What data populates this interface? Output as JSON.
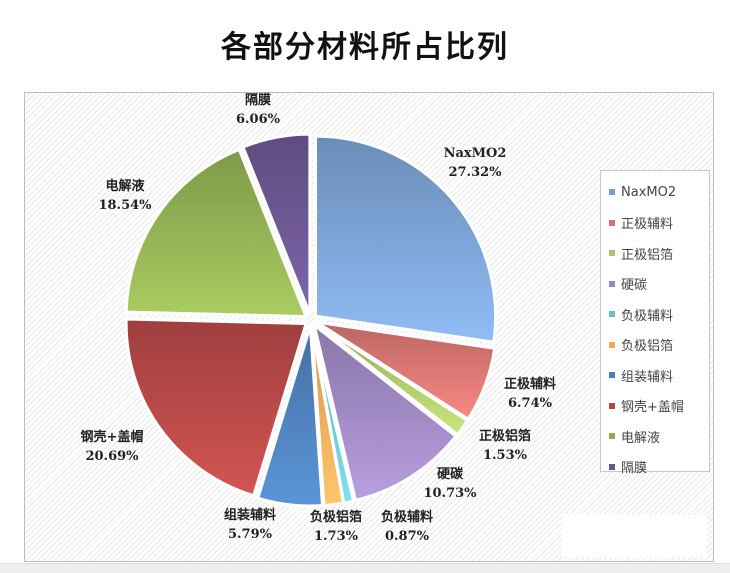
{
  "chart_data": {
    "type": "pie",
    "title": "各部分材料所占比列",
    "slices": [
      {
        "name": "NaxMO2",
        "value": 27.32,
        "label": "27.32%",
        "color": "#7a9fd0"
      },
      {
        "name": "正极辅料",
        "value": 6.74,
        "label": "6.74%",
        "color": "#d47470"
      },
      {
        "name": "正极铝箔",
        "value": 1.53,
        "label": "1.53%",
        "color": "#a9c46a"
      },
      {
        "name": "硬碳",
        "value": 10.73,
        "label": "10.73%",
        "color": "#9c86be"
      },
      {
        "name": "负极辅料",
        "value": 0.87,
        "label": "0.87%",
        "color": "#6ac0cc"
      },
      {
        "name": "负极铝箔",
        "value": 1.73,
        "label": "1.73%",
        "color": "#f2a85c"
      },
      {
        "name": "组装辅料",
        "value": 5.79,
        "label": "5.79%",
        "color": "#4d7eb7"
      },
      {
        "name": "钢壳+盖帽",
        "value": 20.69,
        "label": "20.69%",
        "color": "#b34846"
      },
      {
        "name": "电解液",
        "value": 18.54,
        "label": "18.54%",
        "color": "#8fae52"
      },
      {
        "name": "隔膜",
        "value": 6.06,
        "label": "6.06%",
        "color": "#6c5690"
      }
    ],
    "legend_position": "right",
    "legend_labels": [
      "NaxMO2",
      "正极辅料",
      "正极铝箔",
      "硬碳",
      "负极辅料",
      "负极铝箔",
      "组装辅料",
      "钢壳+盖帽",
      "电解液",
      "隔膜"
    ],
    "exploded": true
  }
}
